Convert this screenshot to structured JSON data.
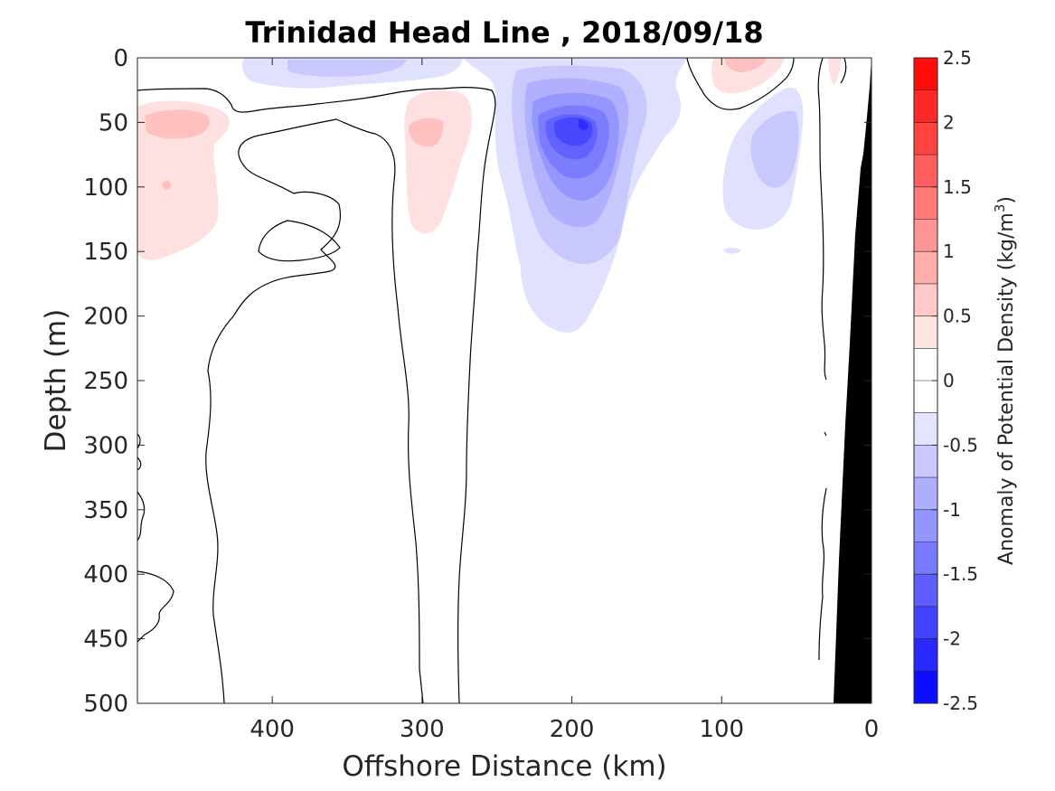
{
  "chart_data": {
    "type": "heatmap",
    "title": "Trinidad Head Line , 2018/09/18",
    "xlabel": "Offshore Distance (km)",
    "ylabel": "Depth (m)",
    "colorbar_label": "Anomaly of Potential Density (kg/m",
    "colorbar_label_sup": "3",
    "colorbar_label_end": ")",
    "xlim": [
      490,
      0
    ],
    "x_reversed": true,
    "ylim": [
      500,
      0
    ],
    "y_reversed": true,
    "xticks": [
      400,
      300,
      200,
      100,
      0
    ],
    "xtick_labels": [
      "400",
      "300",
      "200",
      "100",
      "0"
    ],
    "yticks": [
      0,
      50,
      100,
      150,
      200,
      250,
      300,
      350,
      400,
      450,
      500
    ],
    "ytick_labels": [
      "0",
      "50",
      "100",
      "150",
      "200",
      "250",
      "300",
      "350",
      "400",
      "450",
      "500"
    ],
    "clim": [
      -2.5,
      2.5
    ],
    "colorbar_step": 0.25,
    "colorbar_ticks": [
      2.5,
      2,
      1.5,
      1,
      0.5,
      0,
      -0.5,
      -1,
      -1.5,
      -2,
      -2.5
    ],
    "colorbar_tick_labels": [
      "2.5",
      "2",
      "1.5",
      "1",
      "0.5",
      "0",
      "-0.5",
      "-1",
      "-1.5",
      "-2",
      "-2.5"
    ],
    "colormap": {
      "positive": "#ff0000",
      "negative": "#0000ff",
      "zero": "#ffffff"
    },
    "bathymetry_color": "#000000",
    "contour_color": "#000000",
    "anomaly_features": [
      {
        "label": "upper-west positive patch",
        "x_center": 460,
        "y_center": 60,
        "x_range": [
          490,
          445
        ],
        "y_range": [
          35,
          158
        ],
        "max_anomaly": 0.5
      },
      {
        "label": "near-surface negative patch",
        "x_center": 370,
        "y_center": 5,
        "x_range": [
          420,
          330
        ],
        "y_range": [
          0,
          25
        ],
        "max_anomaly": -0.5
      },
      {
        "label": "positive patch near 290 km",
        "x_center": 290,
        "y_center": 55,
        "x_range": [
          320,
          260
        ],
        "y_range": [
          25,
          135
        ],
        "max_anomaly": 0.5
      },
      {
        "label": "main negative eddy",
        "x_center": 190,
        "y_center": 55,
        "x_range": [
          245,
          145
        ],
        "y_range": [
          0,
          215
        ],
        "max_anomaly": -2.0
      },
      {
        "label": "positive patch near 90 km",
        "x_center": 90,
        "y_center": 5,
        "x_range": [
          115,
          60
        ],
        "y_range": [
          0,
          35
        ],
        "max_anomaly": 0.5
      },
      {
        "label": "negative patch near 70 km",
        "x_center": 70,
        "y_center": 80,
        "x_range": [
          105,
          40
        ],
        "y_range": [
          20,
          125
        ],
        "max_anomaly": -0.5
      },
      {
        "label": "small positive patch near shelf",
        "x_center": 25,
        "y_center": 10,
        "x_range": [
          30,
          20
        ],
        "y_range": [
          0,
          20
        ],
        "max_anomaly": 0.25
      }
    ]
  }
}
